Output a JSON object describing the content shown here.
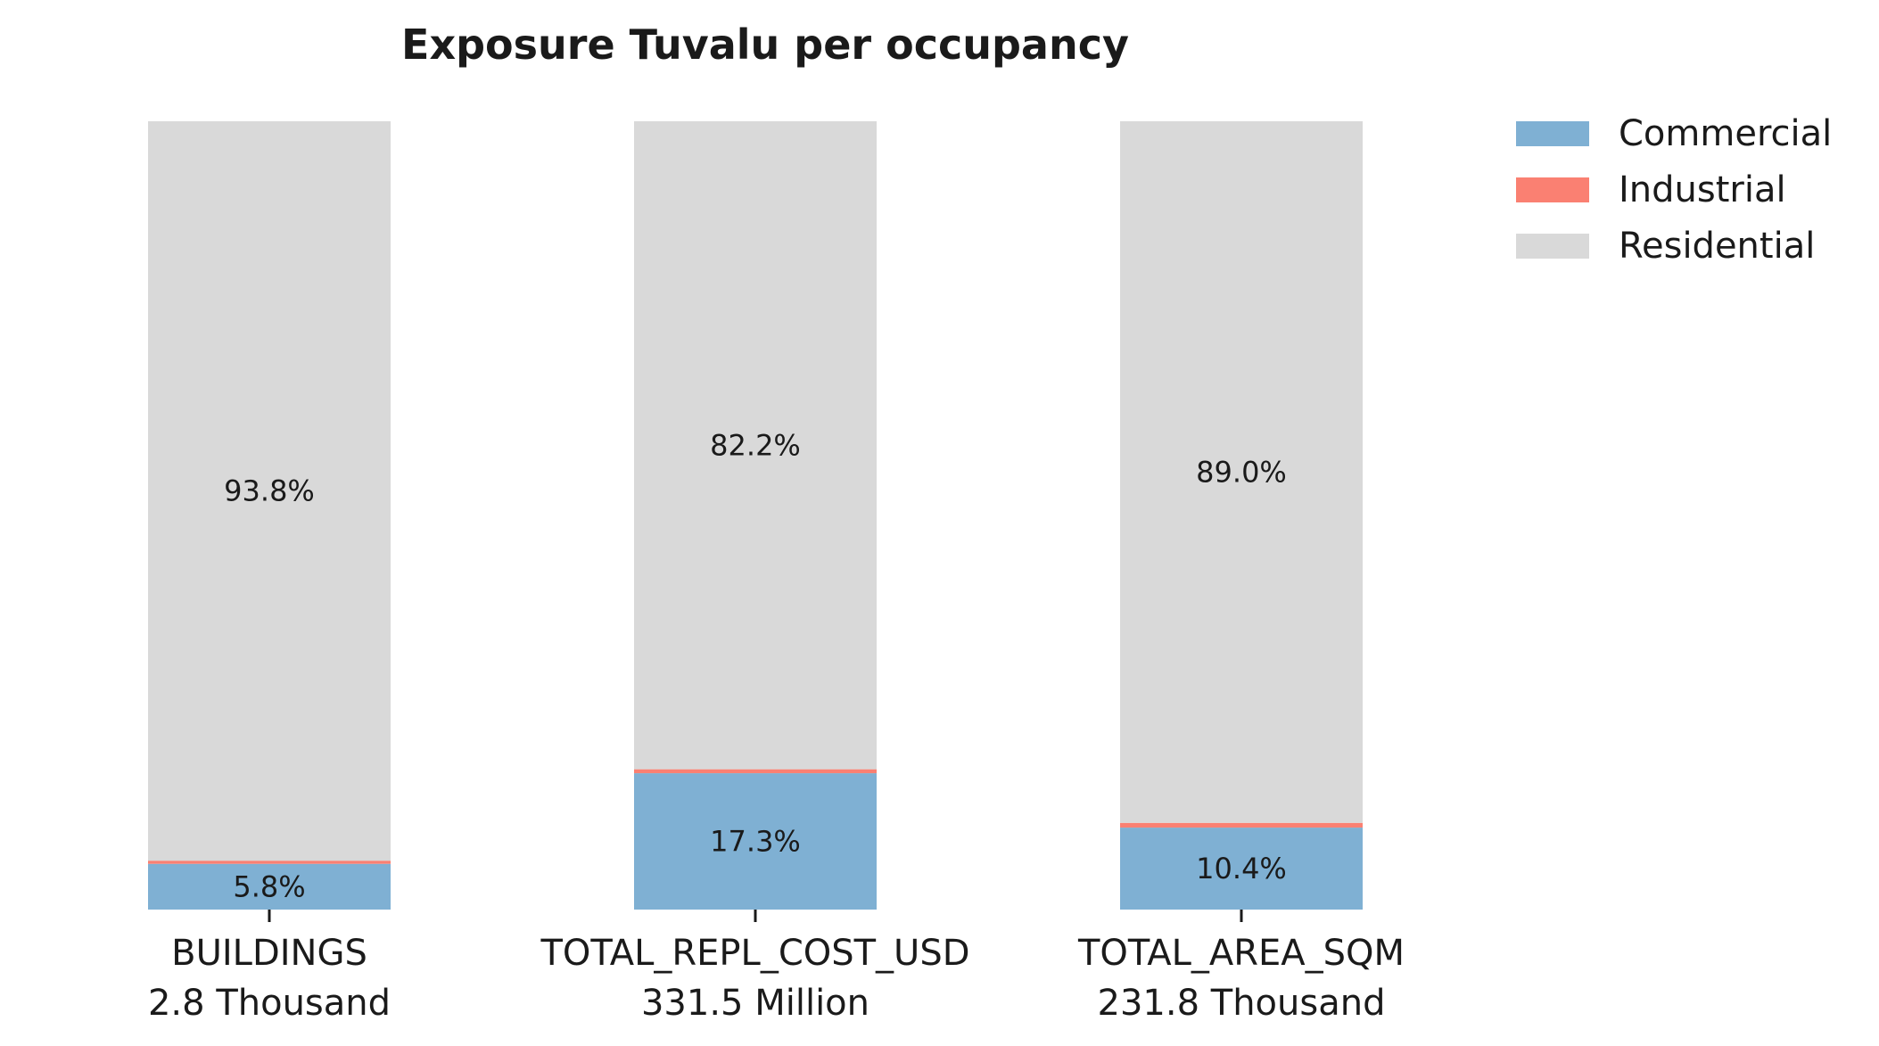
{
  "chart_data": {
    "type": "bar",
    "stacked": true,
    "percent": true,
    "title": "Exposure Tuvalu per occupancy",
    "categories": [
      "BUILDINGS",
      "TOTAL_REPL_COST_USD",
      "TOTAL_AREA_SQM"
    ],
    "category_totals": [
      "2.8 Thousand",
      "331.5 Million",
      "231.8 Thousand"
    ],
    "ylim": [
      0,
      100
    ],
    "grid": false,
    "legend_position": "top-right",
    "series": [
      {
        "name": "Commercial",
        "color": "#7fb0d3",
        "values": [
          5.8,
          17.3,
          10.4
        ],
        "labels": [
          "5.8%",
          "17.3%",
          "10.4%"
        ]
      },
      {
        "name": "Industrial",
        "color": "#fa8072",
        "values": [
          0.4,
          0.5,
          0.6
        ],
        "labels": [
          "",
          "",
          ""
        ]
      },
      {
        "name": "Residential",
        "color": "#d9d9d9",
        "values": [
          93.8,
          82.2,
          89.0
        ],
        "labels": [
          "93.8%",
          "82.2%",
          "89.0%"
        ]
      }
    ]
  }
}
